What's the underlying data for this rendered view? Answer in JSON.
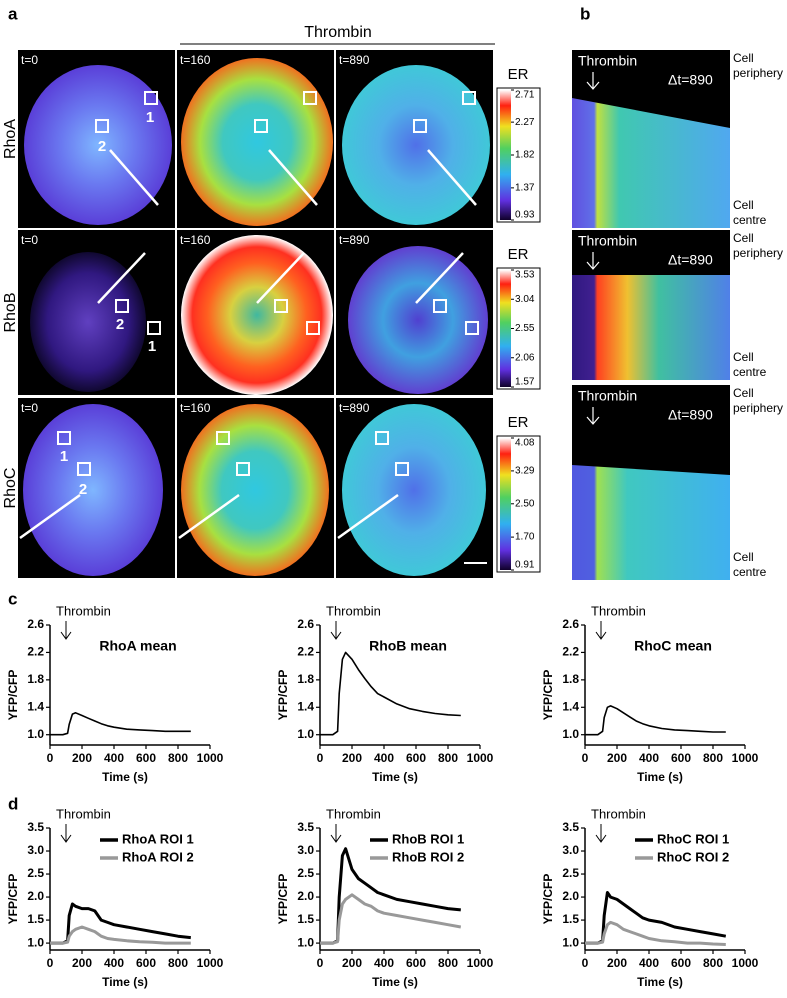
{
  "panels": {
    "a": {
      "letter": "a",
      "stimulus": "Thrombin",
      "rows": [
        {
          "label": "RhoA",
          "times": [
            "t=0",
            "t=160",
            "t=890"
          ],
          "rois": [
            "1",
            "2"
          ],
          "colorbar": {
            "label": "ER",
            "lim": [
              0.93,
              2.71
            ],
            "ticks": [
              0.93,
              1.37,
              1.82,
              2.27,
              2.71
            ]
          }
        },
        {
          "label": "RhoB",
          "times": [
            "t=0",
            "t=160",
            "t=890"
          ],
          "rois": [
            "1",
            "2"
          ],
          "colorbar": {
            "label": "ER",
            "lim": [
              1.57,
              3.53
            ],
            "ticks": [
              1.57,
              2.06,
              2.55,
              3.04,
              3.53
            ]
          }
        },
        {
          "label": "RhoC",
          "times": [
            "t=0",
            "t=160",
            "t=890"
          ],
          "rois": [
            "1",
            "2"
          ],
          "colorbar": {
            "label": "ER",
            "lim": [
              0.91,
              4.08
            ],
            "ticks": [
              0.91,
              {
                "value": 1.7,
                "label": "1.70"
              },
              {
                "value": 2.5,
                "label": "2.50"
              },
              3.29,
              4.08
            ]
          }
        }
      ]
    },
    "b": {
      "letter": "b",
      "rows": [
        {
          "stimulus": "Thrombin",
          "delta": "Δt=890",
          "top": [
            "Cell",
            "periphery"
          ],
          "bottom": [
            "Cell",
            "centre"
          ]
        },
        {
          "stimulus": "Thrombin",
          "delta": "Δt=890",
          "top": [
            "Cell",
            "periphery"
          ],
          "bottom": [
            "Cell",
            "centre"
          ]
        },
        {
          "stimulus": "Thrombin",
          "delta": "Δt=890",
          "top": [
            "Cell",
            "periphery"
          ],
          "bottom": [
            "Cell",
            "centre"
          ]
        }
      ]
    },
    "c": {
      "letter": "c"
    },
    "d": {
      "letter": "d"
    }
  },
  "chart_data": [
    {
      "type": "line",
      "title": "RhoA mean",
      "annotation": {
        "text": "Thrombin",
        "x": 100
      },
      "xlabel": "Time (s)",
      "ylabel": "YFP/CFP",
      "xlim": [
        0,
        1000
      ],
      "xticks": [
        0,
        200,
        400,
        600,
        800,
        1000
      ],
      "ylim": [
        0.85,
        2.6
      ],
      "yticks": [
        {
          "value": 1,
          "label": "1.0"
        },
        1.4,
        1.8,
        2.2,
        2.6
      ],
      "x": [
        0,
        40,
        80,
        110,
        120,
        140,
        160,
        200,
        240,
        280,
        320,
        360,
        400,
        480,
        560,
        640,
        720,
        800,
        880
      ],
      "series": [
        {
          "color": "#000000",
          "values": [
            1.0,
            1.0,
            1.0,
            1.02,
            1.15,
            1.3,
            1.32,
            1.28,
            1.24,
            1.2,
            1.16,
            1.13,
            1.11,
            1.08,
            1.07,
            1.06,
            1.05,
            1.05,
            1.05
          ]
        }
      ]
    },
    {
      "type": "line",
      "title": "RhoB mean",
      "annotation": {
        "text": "Thrombin",
        "x": 100
      },
      "xlabel": "Time (s)",
      "ylabel": "YFP/CFP",
      "xlim": [
        0,
        1000
      ],
      "xticks": [
        0,
        200,
        400,
        600,
        800,
        1000
      ],
      "ylim": [
        0.85,
        2.6
      ],
      "yticks": [
        {
          "value": 1,
          "label": "1.0"
        },
        1.4,
        1.8,
        2.2,
        2.6
      ],
      "x": [
        0,
        40,
        80,
        110,
        120,
        140,
        160,
        200,
        240,
        280,
        320,
        360,
        400,
        480,
        560,
        640,
        720,
        800,
        880
      ],
      "series": [
        {
          "color": "#000000",
          "values": [
            1.0,
            1.0,
            1.0,
            1.05,
            1.6,
            2.1,
            2.2,
            2.1,
            1.95,
            1.82,
            1.7,
            1.6,
            1.55,
            1.45,
            1.38,
            1.34,
            1.31,
            1.29,
            1.28
          ]
        }
      ]
    },
    {
      "type": "line",
      "title": "RhoC mean",
      "annotation": {
        "text": "Thrombin",
        "x": 100
      },
      "xlabel": "Time (s)",
      "ylabel": "YFP/CFP",
      "xlim": [
        0,
        1000
      ],
      "xticks": [
        0,
        200,
        400,
        600,
        800,
        1000
      ],
      "ylim": [
        0.85,
        2.6
      ],
      "yticks": [
        {
          "value": 1,
          "label": "1.0"
        },
        1.4,
        1.8,
        2.2,
        2.6
      ],
      "x": [
        0,
        40,
        80,
        110,
        120,
        140,
        160,
        200,
        240,
        280,
        320,
        360,
        400,
        480,
        560,
        640,
        720,
        800,
        880
      ],
      "series": [
        {
          "color": "#000000",
          "values": [
            1.0,
            1.0,
            1.0,
            1.05,
            1.25,
            1.4,
            1.42,
            1.38,
            1.32,
            1.26,
            1.2,
            1.16,
            1.13,
            1.09,
            1.07,
            1.06,
            1.05,
            1.04,
            1.04
          ]
        }
      ]
    },
    {
      "type": "line",
      "annotation": {
        "text": "Thrombin",
        "x": 100
      },
      "xlabel": "Time (s)",
      "ylabel": "YFP/CFP",
      "xlim": [
        0,
        1000
      ],
      "xticks": [
        0,
        200,
        400,
        600,
        800,
        1000
      ],
      "ylim": [
        0.85,
        3.5
      ],
      "yticks": [
        {
          "value": 1,
          "label": "1.0"
        },
        1.5,
        {
          "value": 2,
          "label": "2.0"
        },
        2.5,
        {
          "value": 3,
          "label": "3.0"
        },
        3.5
      ],
      "x": [
        0,
        40,
        80,
        110,
        120,
        140,
        160,
        200,
        240,
        280,
        320,
        360,
        400,
        480,
        560,
        640,
        720,
        800,
        880
      ],
      "series": [
        {
          "name": "RhoA ROI 1",
          "color": "#000000",
          "values": [
            1.0,
            1.0,
            1.0,
            1.05,
            1.6,
            1.85,
            1.8,
            1.75,
            1.75,
            1.7,
            1.5,
            1.45,
            1.4,
            1.35,
            1.3,
            1.25,
            1.2,
            1.15,
            1.12
          ]
        },
        {
          "name": "RhoA ROI 2",
          "color": "#999999",
          "values": [
            1.0,
            1.0,
            1.0,
            1.02,
            1.15,
            1.25,
            1.3,
            1.35,
            1.3,
            1.25,
            1.15,
            1.1,
            1.08,
            1.05,
            1.03,
            1.02,
            1.0,
            1.0,
            1.0
          ]
        }
      ]
    },
    {
      "type": "line",
      "annotation": {
        "text": "Thrombin",
        "x": 100
      },
      "xlabel": "Time (s)",
      "ylabel": "YFP/CFP",
      "xlim": [
        0,
        1000
      ],
      "xticks": [
        0,
        200,
        400,
        600,
        800,
        1000
      ],
      "ylim": [
        0.85,
        3.5
      ],
      "yticks": [
        {
          "value": 1,
          "label": "1.0"
        },
        1.5,
        {
          "value": 2,
          "label": "2.0"
        },
        2.5,
        {
          "value": 3,
          "label": "3.0"
        },
        3.5
      ],
      "x": [
        0,
        40,
        80,
        110,
        120,
        140,
        160,
        200,
        240,
        280,
        320,
        360,
        400,
        480,
        560,
        640,
        720,
        800,
        880
      ],
      "series": [
        {
          "name": "RhoB ROI 1",
          "color": "#000000",
          "values": [
            1.0,
            1.0,
            1.0,
            1.05,
            2.0,
            2.9,
            3.05,
            2.6,
            2.4,
            2.3,
            2.2,
            2.1,
            2.05,
            1.95,
            1.9,
            1.85,
            1.8,
            1.75,
            1.72
          ]
        },
        {
          "name": "RhoB ROI 2",
          "color": "#999999",
          "values": [
            1.0,
            1.0,
            1.0,
            1.03,
            1.5,
            1.85,
            1.95,
            2.05,
            1.95,
            1.85,
            1.8,
            1.7,
            1.65,
            1.6,
            1.55,
            1.5,
            1.45,
            1.4,
            1.35
          ]
        }
      ]
    },
    {
      "type": "line",
      "annotation": {
        "text": "Thrombin",
        "x": 100
      },
      "xlabel": "Time (s)",
      "ylabel": "YFP/CFP",
      "xlim": [
        0,
        1000
      ],
      "xticks": [
        0,
        200,
        400,
        600,
        800,
        1000
      ],
      "ylim": [
        0.85,
        3.5
      ],
      "yticks": [
        {
          "value": 1,
          "label": "1.0"
        },
        1.5,
        {
          "value": 2,
          "label": "2.0"
        },
        2.5,
        {
          "value": 3,
          "label": "3.0"
        },
        3.5
      ],
      "x": [
        0,
        40,
        80,
        110,
        120,
        140,
        160,
        200,
        240,
        280,
        320,
        360,
        400,
        480,
        560,
        640,
        720,
        800,
        880
      ],
      "series": [
        {
          "name": "RhoC ROI 1",
          "color": "#000000",
          "values": [
            1.0,
            1.0,
            1.0,
            1.05,
            1.6,
            2.1,
            2.0,
            1.95,
            1.85,
            1.75,
            1.65,
            1.55,
            1.5,
            1.45,
            1.35,
            1.3,
            1.25,
            1.2,
            1.15
          ]
        },
        {
          "name": "RhoC ROI 2",
          "color": "#999999",
          "values": [
            1.0,
            1.0,
            1.0,
            1.02,
            1.2,
            1.4,
            1.45,
            1.4,
            1.3,
            1.25,
            1.2,
            1.15,
            1.1,
            1.05,
            1.03,
            1.0,
            1.0,
            0.98,
            0.97
          ]
        }
      ]
    }
  ]
}
